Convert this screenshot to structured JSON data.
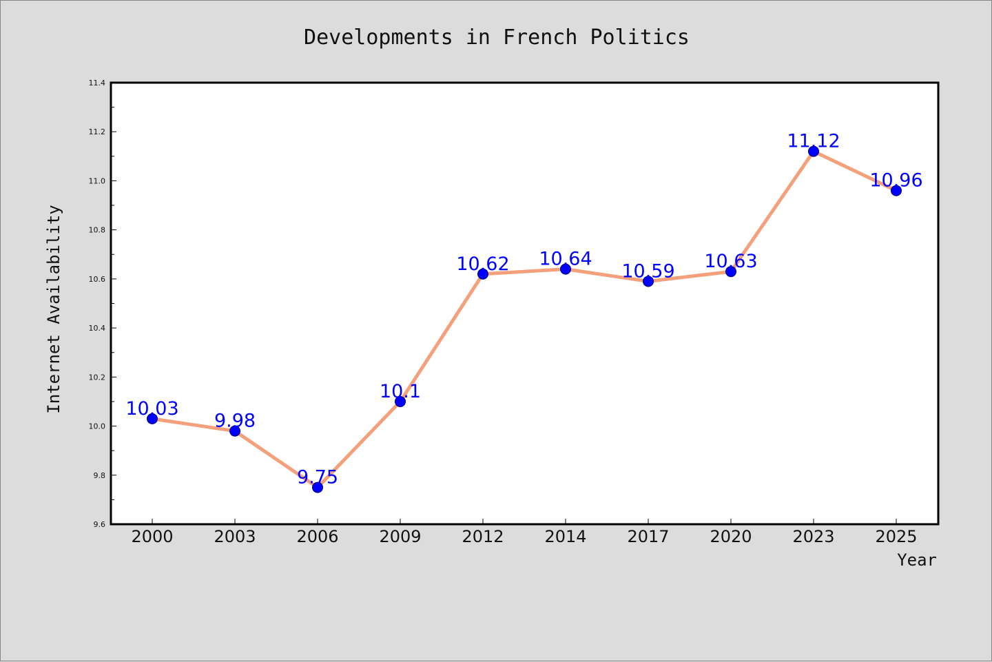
{
  "chart_data": {
    "type": "line",
    "title": "Developments in French Politics",
    "xlabel": "Year",
    "ylabel": "Internet Availability",
    "categories": [
      "2000",
      "2003",
      "2006",
      "2009",
      "2012",
      "2014",
      "2017",
      "2020",
      "2023",
      "2025"
    ],
    "series": [
      {
        "values": [
          10.03,
          9.98,
          9.75,
          10.1,
          10.62,
          10.64,
          10.59,
          10.63,
          11.12,
          10.96
        ]
      }
    ],
    "data_labels": [
      "10.03",
      "9.98",
      "9.75",
      "10.1",
      "10.62",
      "10.64",
      "10.59",
      "10.63",
      "11.12",
      "10.96"
    ],
    "ylim": [
      9.6,
      11.4
    ],
    "yticks": [
      "9.6",
      "9.8",
      "10.0",
      "10.2",
      "10.4",
      "10.6",
      "10.8",
      "11.0",
      "11.2",
      "11.4"
    ],
    "grid": false,
    "colors": {
      "line": "#f4a07a",
      "marker": "#0000ff",
      "label": "#0000ff",
      "background": "#dcdcdc",
      "plot_background": "#ffffff"
    }
  }
}
